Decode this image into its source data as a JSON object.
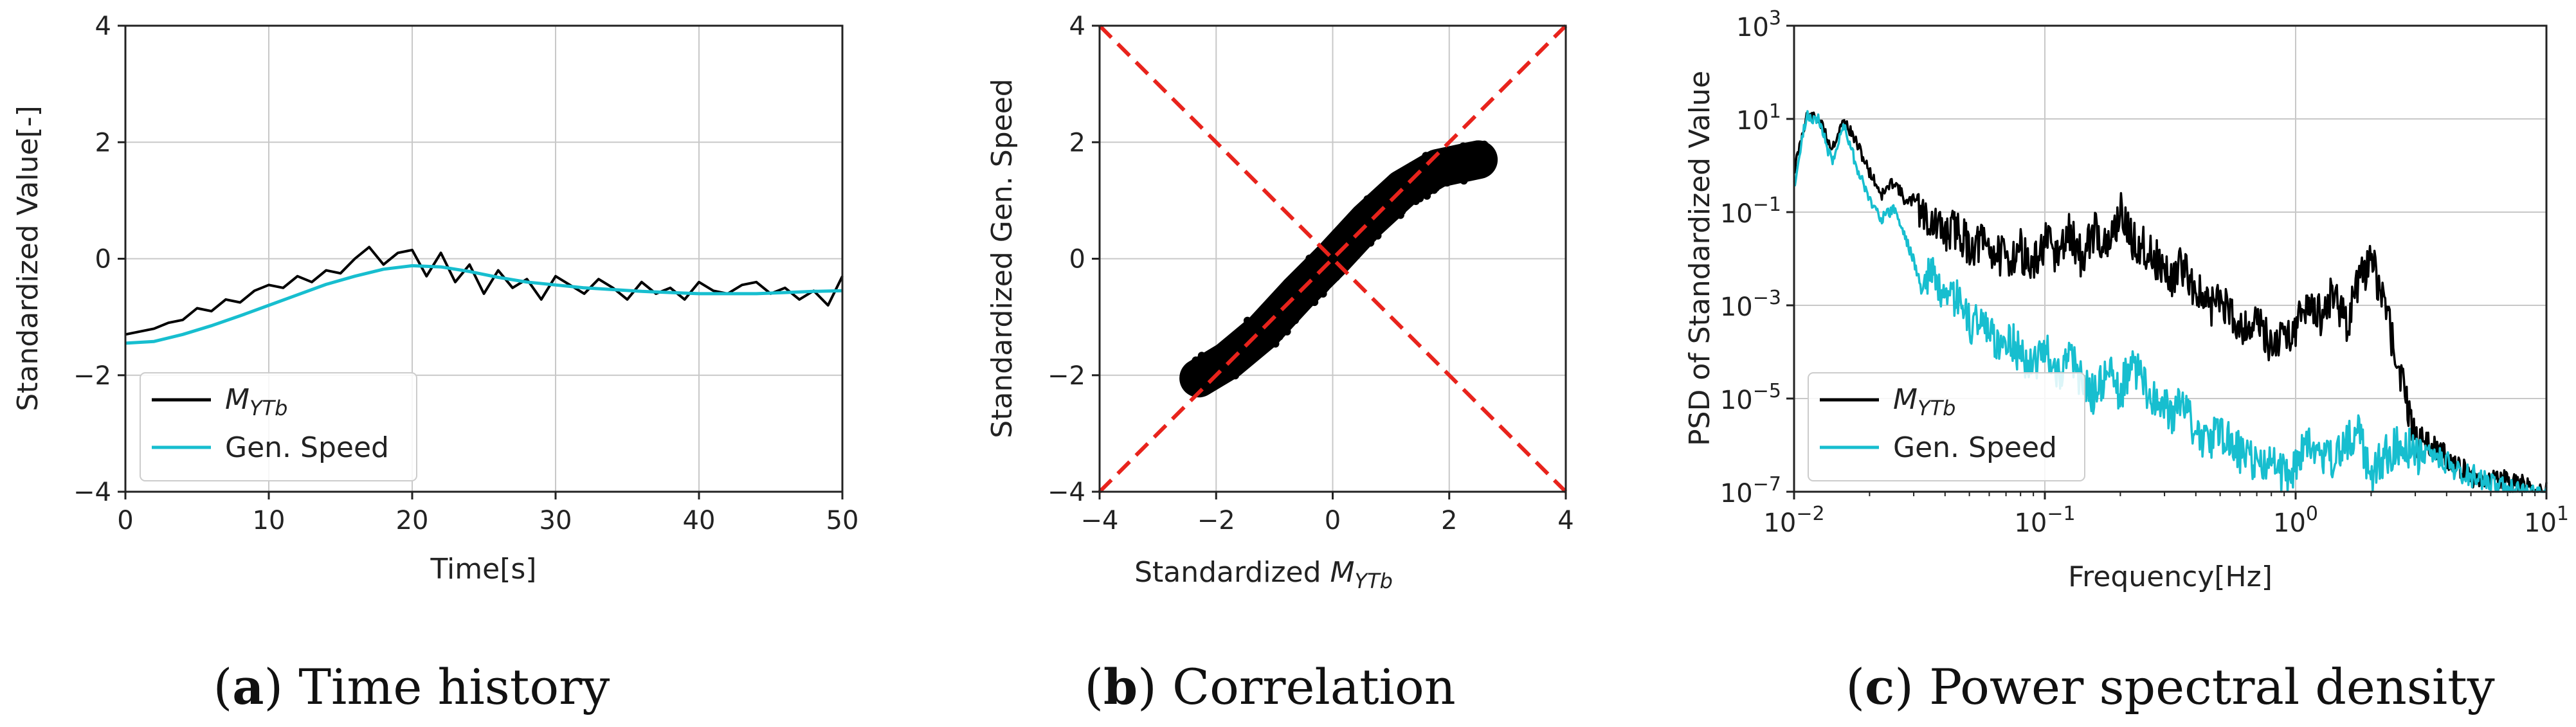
{
  "chart_data": [
    {
      "id": "a",
      "type": "line",
      "xlabel": "Time[s]",
      "ylabel": "Standardized Value[-]",
      "xlim": [
        0,
        50
      ],
      "ylim": [
        -4,
        4
      ],
      "xticks": [
        0,
        10,
        20,
        30,
        40,
        50
      ],
      "yticks": [
        -4,
        -2,
        0,
        2,
        4
      ],
      "xtick_labels": [
        "0",
        "10",
        "20",
        "30",
        "40",
        "50"
      ],
      "ytick_labels": [
        "−4",
        "−2",
        "0",
        "2",
        "4"
      ],
      "grid": true,
      "legend_position": "lower-left",
      "series": [
        {
          "name": "M_YTb",
          "label_main": "M",
          "label_sub": "YTb",
          "color": "#000000",
          "x": [
            0,
            1,
            2,
            3,
            4,
            5,
            6,
            7,
            8,
            9,
            10,
            11,
            12,
            13,
            14,
            15,
            16,
            17,
            18,
            19,
            20,
            21,
            22,
            23,
            24,
            25,
            26,
            27,
            28,
            29,
            30,
            31,
            32,
            33,
            34,
            35,
            36,
            37,
            38,
            39,
            40,
            41,
            42,
            43,
            44,
            45,
            46,
            47,
            48,
            49,
            50
          ],
          "y": [
            -1.3,
            -1.25,
            -1.2,
            -1.1,
            -1.05,
            -0.85,
            -0.9,
            -0.7,
            -0.75,
            -0.55,
            -0.45,
            -0.5,
            -0.3,
            -0.4,
            -0.2,
            -0.25,
            0.0,
            0.2,
            -0.1,
            0.1,
            0.15,
            -0.3,
            0.1,
            -0.4,
            -0.1,
            -0.6,
            -0.2,
            -0.5,
            -0.35,
            -0.7,
            -0.3,
            -0.45,
            -0.6,
            -0.35,
            -0.5,
            -0.7,
            -0.4,
            -0.6,
            -0.5,
            -0.7,
            -0.4,
            -0.55,
            -0.6,
            -0.45,
            -0.4,
            -0.6,
            -0.5,
            -0.7,
            -0.55,
            -0.8,
            -0.3
          ]
        },
        {
          "name": "Gen. Speed",
          "color": "#17becf",
          "x": [
            0,
            2,
            4,
            6,
            8,
            10,
            12,
            14,
            16,
            18,
            20,
            22,
            24,
            26,
            28,
            30,
            32,
            34,
            36,
            38,
            40,
            42,
            44,
            46,
            48,
            50
          ],
          "y": [
            -1.45,
            -1.42,
            -1.3,
            -1.15,
            -0.98,
            -0.8,
            -0.62,
            -0.44,
            -0.3,
            -0.18,
            -0.12,
            -0.14,
            -0.22,
            -0.32,
            -0.4,
            -0.45,
            -0.5,
            -0.53,
            -0.56,
            -0.58,
            -0.6,
            -0.6,
            -0.6,
            -0.58,
            -0.56,
            -0.55
          ]
        }
      ]
    },
    {
      "id": "b",
      "type": "scatter",
      "xlabel_main": "Standardized ",
      "xlabel_math": "M",
      "xlabel_sub": "YTb",
      "ylabel": "Standardized Gen. Speed",
      "xlim": [
        -4,
        4
      ],
      "ylim": [
        -4,
        4
      ],
      "xticks": [
        -4,
        -2,
        0,
        2,
        4
      ],
      "yticks": [
        -4,
        -2,
        0,
        2,
        4
      ],
      "xtick_labels": [
        "−4",
        "−2",
        "0",
        "2",
        "4"
      ],
      "ytick_labels": [
        "−4",
        "−2",
        "0",
        "2",
        "4"
      ],
      "grid": true,
      "point_cloud_centerline": {
        "x": [
          -2.3,
          -1.8,
          -1.2,
          -0.6,
          0.0,
          0.6,
          1.2,
          1.8,
          2.5
        ],
        "y": [
          -2.05,
          -1.75,
          -1.25,
          -0.6,
          0.0,
          0.65,
          1.2,
          1.55,
          1.7
        ]
      },
      "reference_lines": [
        {
          "x": [
            -4,
            4
          ],
          "y": [
            -4,
            4
          ],
          "color": "#e8231c",
          "style": "dashed"
        },
        {
          "x": [
            -4,
            4
          ],
          "y": [
            4,
            -4
          ],
          "color": "#e8231c",
          "style": "dashed"
        }
      ]
    },
    {
      "id": "c",
      "type": "line",
      "xscale": "log",
      "yscale": "log",
      "xlabel": "Frequency[Hz]",
      "ylabel": "PSD of Standardized Value",
      "xlim_exp": [
        -2,
        1
      ],
      "ylim_exp": [
        -7,
        3
      ],
      "x_tick_exponents": [
        -2,
        -1,
        0,
        1
      ],
      "y_tick_exponents": [
        -7,
        -5,
        -3,
        -1,
        1,
        3
      ],
      "grid": true,
      "legend_position": "lower-left",
      "series": [
        {
          "name": "M_YTb",
          "label_main": "M",
          "label_sub": "YTb",
          "color": "#000000",
          "log10_f": [
            -2.0,
            -1.95,
            -1.9,
            -1.85,
            -1.8,
            -1.75,
            -1.7,
            -1.65,
            -1.6,
            -1.55,
            -1.5,
            -1.45,
            -1.4,
            -1.35,
            -1.3,
            -1.25,
            -1.2,
            -1.15,
            -1.1,
            -1.05,
            -1.0,
            -0.95,
            -0.9,
            -0.85,
            -0.8,
            -0.75,
            -0.7,
            -0.65,
            -0.6,
            -0.55,
            -0.5,
            -0.45,
            -0.4,
            -0.35,
            -0.3,
            -0.25,
            -0.2,
            -0.15,
            -0.1,
            -0.05,
            0.0,
            0.05,
            0.1,
            0.15,
            0.2,
            0.25,
            0.3,
            0.35,
            0.4,
            0.45,
            0.5,
            0.55,
            0.6,
            0.65,
            0.7,
            0.75,
            0.8,
            0.85,
            0.9,
            0.95,
            1.0
          ],
          "log10_psd": [
            0.0,
            1.2,
            1.1,
            0.5,
            1.1,
            0.6,
            0.0,
            -0.5,
            -0.2,
            -0.7,
            -0.5,
            -0.8,
            -1.0,
            -0.9,
            -1.3,
            -1.2,
            -1.4,
            -1.6,
            -1.3,
            -1.8,
            -1.2,
            -1.5,
            -1.0,
            -1.6,
            -0.9,
            -1.4,
            -0.5,
            -1.2,
            -1.3,
            -1.6,
            -2.0,
            -1.7,
            -2.2,
            -2.6,
            -2.4,
            -2.8,
            -3.0,
            -2.9,
            -3.4,
            -3.2,
            -3.0,
            -2.5,
            -2.8,
            -2.2,
            -3.0,
            -2.1,
            -1.6,
            -2.4,
            -3.6,
            -4.8,
            -5.6,
            -5.8,
            -6.0,
            -6.2,
            -6.4,
            -6.5,
            -6.4,
            -6.6,
            -6.6,
            -6.8,
            -6.8
          ]
        },
        {
          "name": "Gen. Speed",
          "color": "#17becf",
          "log10_f": [
            -2.0,
            -1.95,
            -1.9,
            -1.85,
            -1.8,
            -1.75,
            -1.7,
            -1.65,
            -1.6,
            -1.55,
            -1.5,
            -1.45,
            -1.4,
            -1.35,
            -1.3,
            -1.25,
            -1.2,
            -1.15,
            -1.1,
            -1.05,
            -1.0,
            -0.95,
            -0.9,
            -0.85,
            -0.8,
            -0.75,
            -0.7,
            -0.65,
            -0.6,
            -0.55,
            -0.5,
            -0.45,
            -0.4,
            -0.35,
            -0.3,
            -0.25,
            -0.2,
            -0.15,
            -0.1,
            -0.05,
            0.0,
            0.05,
            0.1,
            0.15,
            0.2,
            0.25,
            0.3,
            0.35,
            0.4,
            0.45,
            0.5,
            0.55,
            0.6,
            0.65,
            0.7,
            0.75,
            0.8,
            0.85,
            0.9,
            0.95,
            1.0
          ],
          "log10_psd": [
            -0.3,
            1.2,
            1.1,
            0.2,
            1.0,
            0.1,
            -0.6,
            -1.0,
            -0.8,
            -1.5,
            -2.3,
            -1.8,
            -2.6,
            -2.4,
            -3.0,
            -2.8,
            -3.4,
            -3.2,
            -3.6,
            -3.8,
            -3.5,
            -4.0,
            -3.7,
            -4.2,
            -4.5,
            -4.0,
            -4.4,
            -3.8,
            -4.3,
            -4.6,
            -4.9,
            -4.7,
            -5.2,
            -5.5,
            -5.3,
            -5.6,
            -5.8,
            -6.0,
            -5.9,
            -6.2,
            -6.0,
            -5.4,
            -5.8,
            -5.9,
            -5.5,
            -5.2,
            -6.2,
            -5.8,
            -5.6,
            -5.6,
            -5.9,
            -6.0,
            -6.1,
            -6.3,
            -6.4,
            -6.5,
            -6.6,
            -6.7,
            -6.8,
            -6.85,
            -6.9
          ]
        }
      ]
    }
  ],
  "captions": [
    {
      "letter": "a",
      "text": " Time history"
    },
    {
      "letter": "b",
      "text": " Correlation"
    },
    {
      "letter": "c",
      "text": " Power spectral density"
    }
  ],
  "legend_sample_name": "Gen. Speed"
}
